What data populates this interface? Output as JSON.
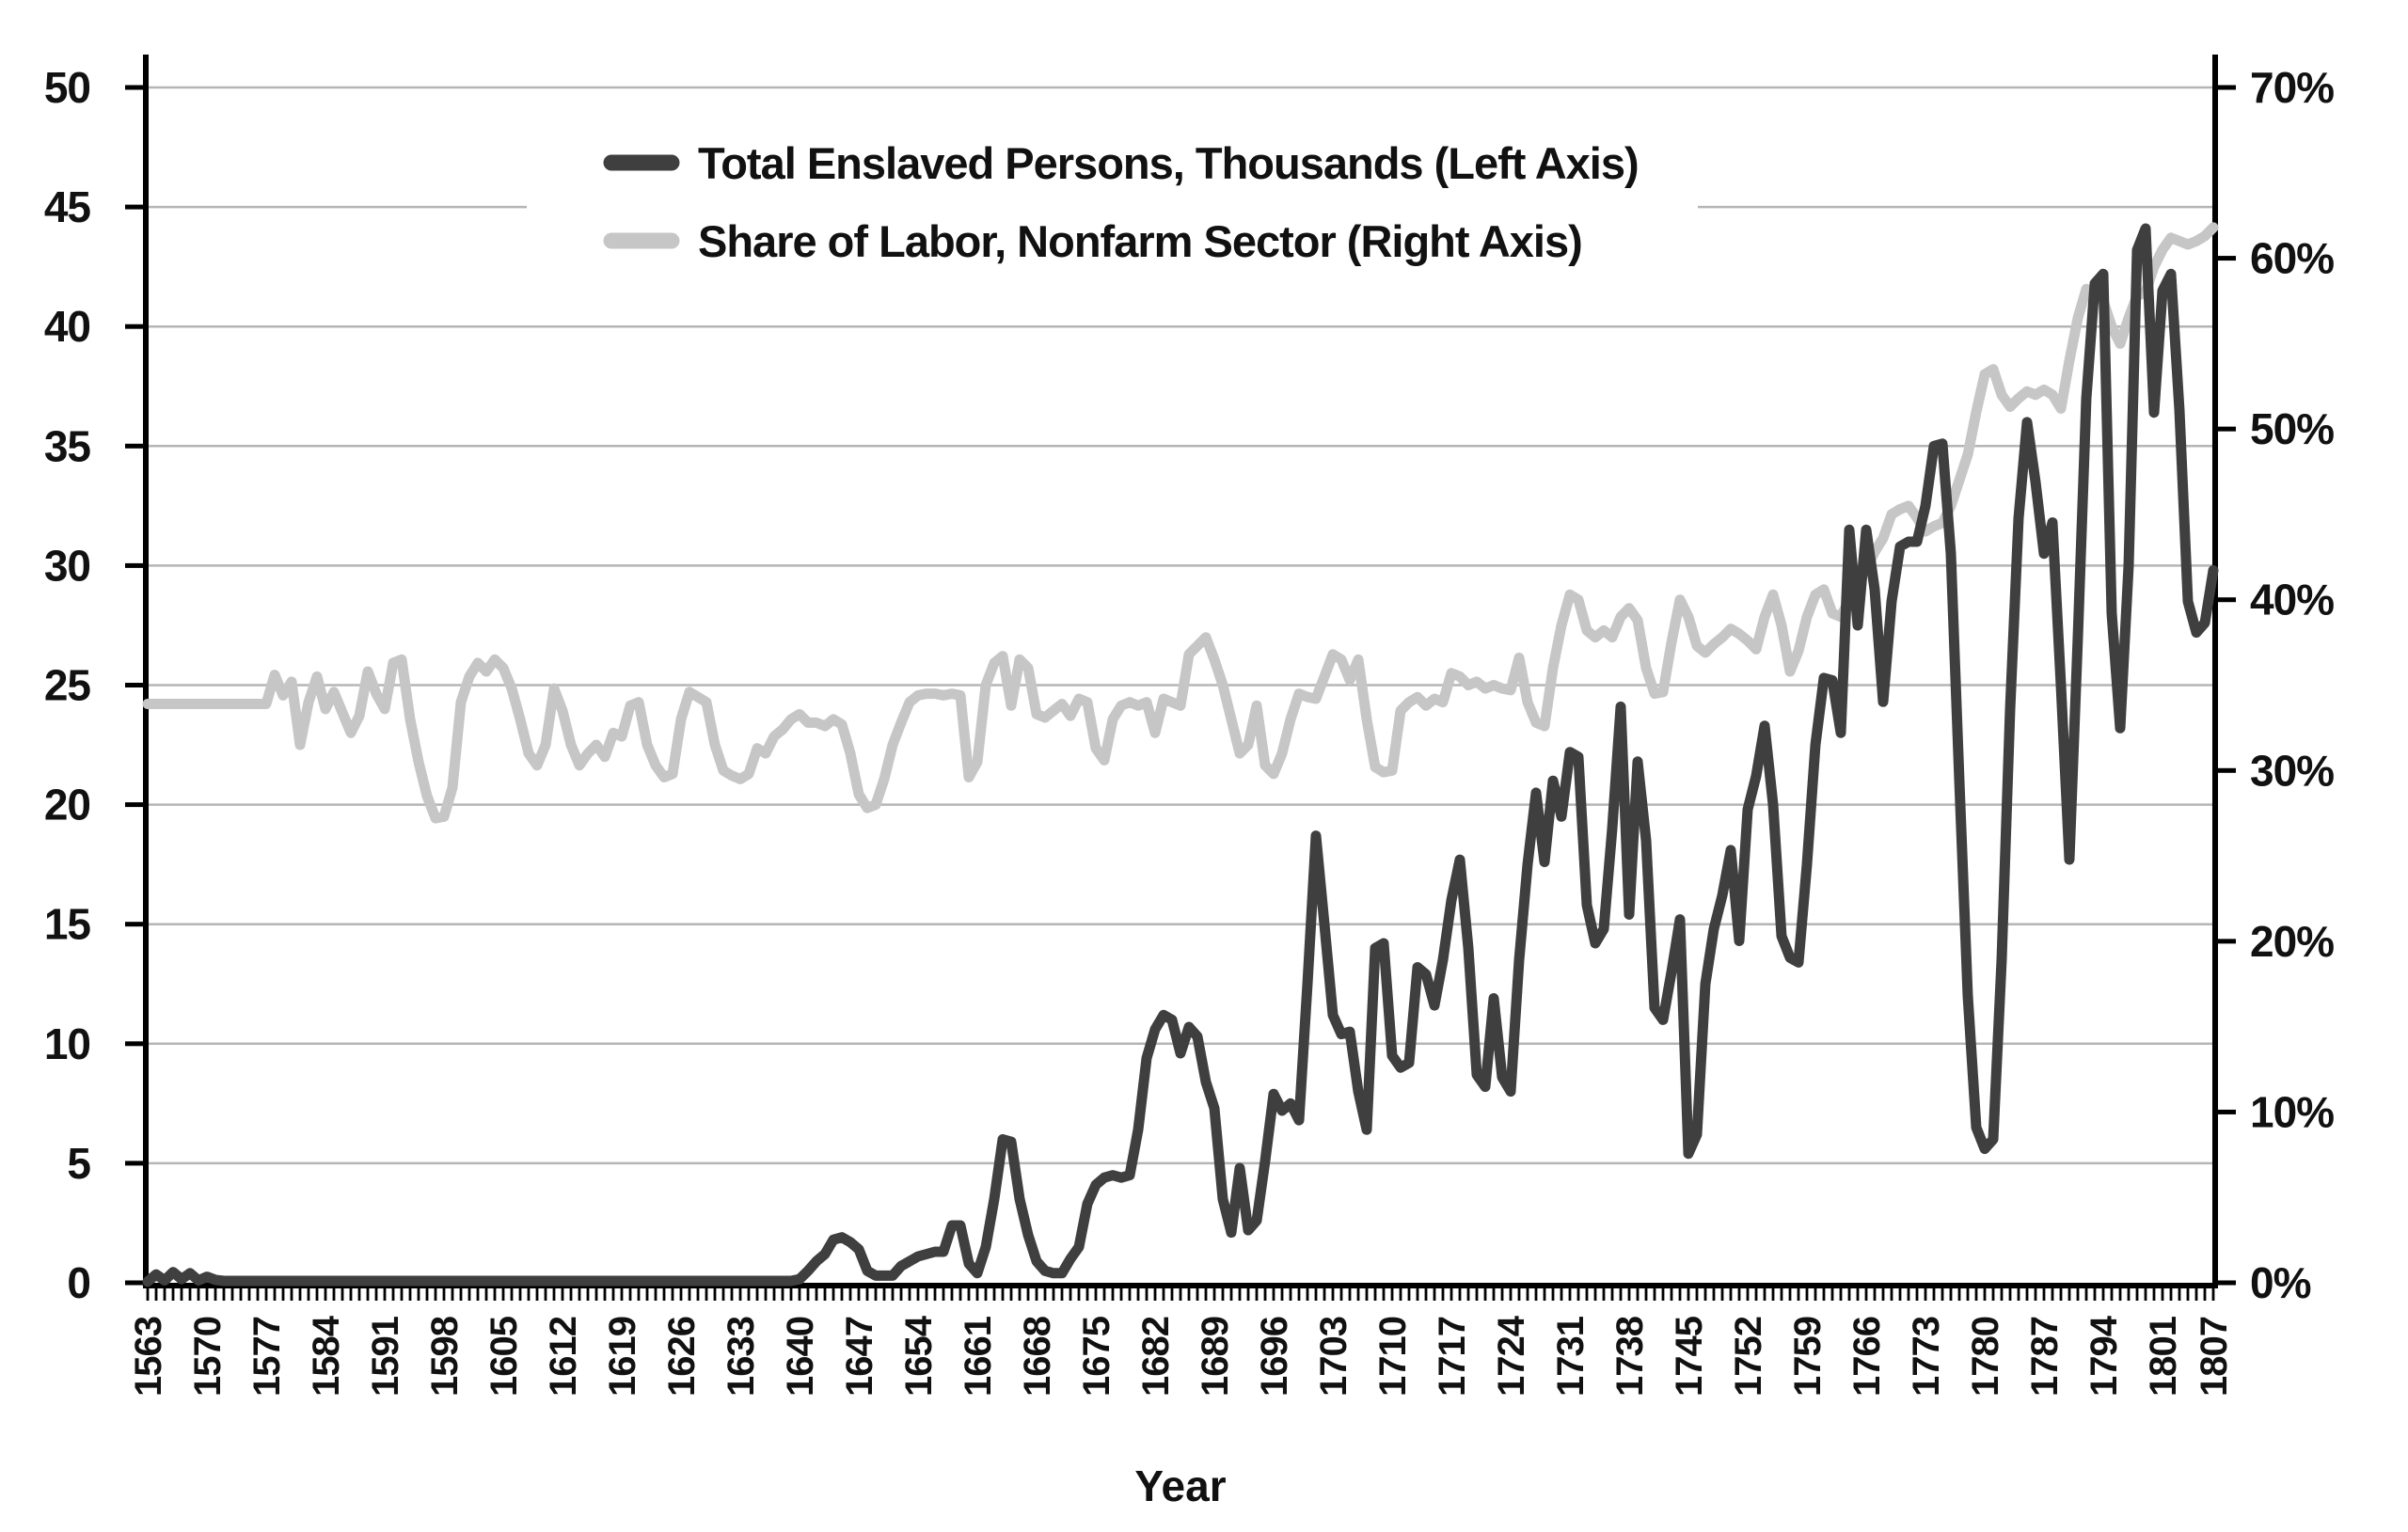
{
  "chart_data": {
    "type": "line",
    "title": "",
    "xlabel": "Year",
    "grid": true,
    "legend_position": "top-center",
    "x_start": 1563,
    "x_end": 1807,
    "x_tick_labels": [
      1563,
      1570,
      1577,
      1584,
      1591,
      1598,
      1605,
      1612,
      1619,
      1626,
      1633,
      1640,
      1647,
      1654,
      1661,
      1668,
      1675,
      1682,
      1689,
      1696,
      1703,
      1710,
      1717,
      1724,
      1731,
      1738,
      1745,
      1752,
      1759,
      1766,
      1773,
      1780,
      1787,
      1794,
      1801,
      1807
    ],
    "left_axis": {
      "min": 0,
      "max": 50,
      "tick_step": 5,
      "tick_labels": [
        "0",
        "5",
        "10",
        "15",
        "20",
        "25",
        "30",
        "35",
        "40",
        "45",
        "50"
      ]
    },
    "right_axis": {
      "min": 0,
      "max": 70,
      "tick_step": 10,
      "tick_labels": [
        "0%",
        "10%",
        "20%",
        "30%",
        "40%",
        "50%",
        "60%",
        "70%"
      ]
    },
    "legend": [
      {
        "name": "Total Enslaved Persons, Thousands (Left Axis)",
        "color": "#3f3f3f",
        "axis": "left"
      },
      {
        "name": "Share of Labor, Nonfarm Sector (Right Axis)",
        "color": "#c6c6c6",
        "axis": "right"
      }
    ],
    "series": [
      {
        "name": "Total Enslaved Persons, Thousands (Left Axis)",
        "axis": "left",
        "color": "#3f3f3f",
        "values": [
          0.05,
          0.35,
          0.1,
          0.45,
          0.15,
          0.4,
          0.1,
          0.25,
          0.12,
          0.08,
          0.08,
          0.08,
          0.08,
          0.08,
          0.08,
          0.08,
          0.08,
          0.08,
          0.08,
          0.08,
          0.08,
          0.08,
          0.08,
          0.08,
          0.08,
          0.08,
          0.08,
          0.08,
          0.08,
          0.08,
          0.08,
          0.08,
          0.08,
          0.08,
          0.08,
          0.08,
          0.08,
          0.08,
          0.08,
          0.08,
          0.08,
          0.08,
          0.08,
          0.08,
          0.08,
          0.08,
          0.08,
          0.08,
          0.08,
          0.08,
          0.08,
          0.08,
          0.08,
          0.08,
          0.08,
          0.08,
          0.08,
          0.08,
          0.08,
          0.08,
          0.08,
          0.08,
          0.08,
          0.08,
          0.08,
          0.08,
          0.08,
          0.08,
          0.08,
          0.08,
          0.08,
          0.08,
          0.08,
          0.08,
          0.08,
          0.08,
          0.08,
          0.15,
          0.5,
          0.9,
          1.2,
          1.8,
          1.9,
          1.7,
          1.4,
          0.5,
          0.3,
          0.3,
          0.3,
          0.7,
          0.9,
          1.1,
          1.2,
          1.3,
          1.3,
          2.4,
          2.4,
          0.8,
          0.4,
          1.5,
          3.5,
          6,
          5.9,
          3.5,
          2,
          0.9,
          0.5,
          0.4,
          0.4,
          1,
          1.5,
          3.3,
          4.1,
          4.4,
          4.5,
          4.4,
          4.5,
          6.4,
          9.4,
          10.6,
          11.2,
          11,
          9.6,
          10.7,
          10.3,
          8.4,
          7.3,
          3.5,
          2.1,
          4.8,
          2.2,
          2.6,
          5.1,
          7.9,
          7.2,
          7.5,
          6.8,
          12.5,
          18.7,
          15,
          11.2,
          10.4,
          10.5,
          8,
          6.4,
          14,
          14.2,
          9.5,
          9,
          9.2,
          13.2,
          12.9,
          11.6,
          13.5,
          16,
          17.7,
          14,
          8.7,
          8.2,
          11.9,
          8.6,
          8,
          13.5,
          17.5,
          20.5,
          17.6,
          21,
          19.5,
          22.2,
          22,
          15.8,
          14.2,
          14.8,
          19,
          24.1,
          15.4,
          21.8,
          18.5,
          11.5,
          11,
          13,
          15.2,
          5.4,
          6.2,
          12.5,
          14.8,
          16.2,
          18.1,
          14.3,
          19.8,
          21.2,
          23.3,
          20,
          14.5,
          13.6,
          13.4,
          17.5,
          22.5,
          25.3,
          25.2,
          23,
          31.5,
          27.5,
          31.5,
          29,
          24.3,
          28.5,
          30.8,
          31,
          31,
          32.5,
          35,
          35.1,
          30.5,
          21,
          12,
          6.5,
          5.6,
          6,
          13.5,
          24,
          32,
          36,
          33.5,
          30.5,
          31.8,
          25,
          17.7,
          27,
          37,
          41.8,
          42.2,
          28,
          23.2,
          30,
          43.2,
          44.1,
          36.4,
          41.5,
          42.2,
          36.5,
          28.5,
          27.2,
          27.6,
          29.8
        ]
      },
      {
        "name": "Share of Labor, Nonfarm Sector (Right Axis)",
        "axis": "right",
        "color": "#c6c6c6",
        "values": [
          33.9,
          33.9,
          33.9,
          33.9,
          33.9,
          33.9,
          33.9,
          33.9,
          33.9,
          33.9,
          33.9,
          33.9,
          33.9,
          33.9,
          33.9,
          35.6,
          34.4,
          35.2,
          31.5,
          34,
          35.5,
          33.6,
          34.6,
          33.4,
          32.2,
          33.2,
          35.8,
          34.5,
          33.6,
          36.3,
          36.5,
          33,
          30.5,
          28.5,
          27.2,
          27.3,
          29,
          34,
          35.5,
          36.3,
          35.8,
          36.5,
          36,
          34.8,
          33,
          31,
          30.3,
          31.5,
          34.8,
          33.5,
          31.5,
          30.3,
          31,
          31.5,
          30.8,
          32.2,
          32,
          33.8,
          34,
          31.5,
          30.3,
          29.6,
          29.8,
          33,
          34.6,
          34.3,
          34,
          31.5,
          30,
          29.7,
          29.5,
          29.8,
          31.3,
          31,
          32,
          32.4,
          33,
          33.3,
          32.8,
          32.8,
          32.6,
          33,
          32.7,
          31,
          28.6,
          27.8,
          28,
          29.5,
          31.5,
          32.8,
          34,
          34.4,
          34.5,
          34.5,
          34.4,
          34.5,
          34.4,
          29.6,
          30.5,
          35,
          36.3,
          36.7,
          33.8,
          36.5,
          36,
          33.3,
          33.1,
          33.5,
          33.9,
          33.2,
          34.2,
          34,
          31.3,
          30.6,
          33,
          33.8,
          34,
          33.8,
          34,
          32.2,
          34.2,
          34,
          33.8,
          36.8,
          37.3,
          37.8,
          36.5,
          35,
          33,
          31,
          31.5,
          33.8,
          30.3,
          29.8,
          31,
          33,
          34.5,
          34.3,
          34.2,
          35.5,
          36.8,
          36.5,
          35.3,
          36.5,
          33,
          30.2,
          29.9,
          30,
          33.5,
          34,
          34.3,
          33.8,
          34.2,
          34,
          35.7,
          35.5,
          35,
          35.2,
          34.8,
          35,
          34.8,
          34.7,
          36.6,
          34,
          32.8,
          32.6,
          36,
          38.5,
          40.3,
          40,
          38.2,
          37.8,
          38.2,
          37.8,
          39,
          39.5,
          38.8,
          36,
          34.5,
          34.6,
          37.5,
          40,
          39,
          37.3,
          36.9,
          37.4,
          37.8,
          38.3,
          38,
          37.6,
          37.1,
          39,
          40.3,
          38.5,
          35.8,
          37,
          39,
          40.3,
          40.6,
          39.2,
          39,
          40,
          41,
          41.8,
          42.8,
          43.6,
          45,
          45.3,
          45.5,
          44.8,
          44,
          44.3,
          44.5,
          45.5,
          47,
          48.5,
          51,
          53.2,
          53.5,
          52,
          51.3,
          51.8,
          52.2,
          52,
          52.3,
          52,
          51.2,
          54,
          56.5,
          58.2,
          58,
          57.5,
          56,
          55,
          56.5,
          57.8,
          58,
          59.5,
          60.5,
          61.2,
          61,
          60.8,
          61,
          61.3,
          61.8
        ]
      }
    ]
  },
  "colors": {
    "background": "#ffffff",
    "grid": "#b5b5b5",
    "axis": "#000000",
    "text": "#111111",
    "series_dark": "#3f3f3f",
    "series_light": "#c6c6c6"
  }
}
